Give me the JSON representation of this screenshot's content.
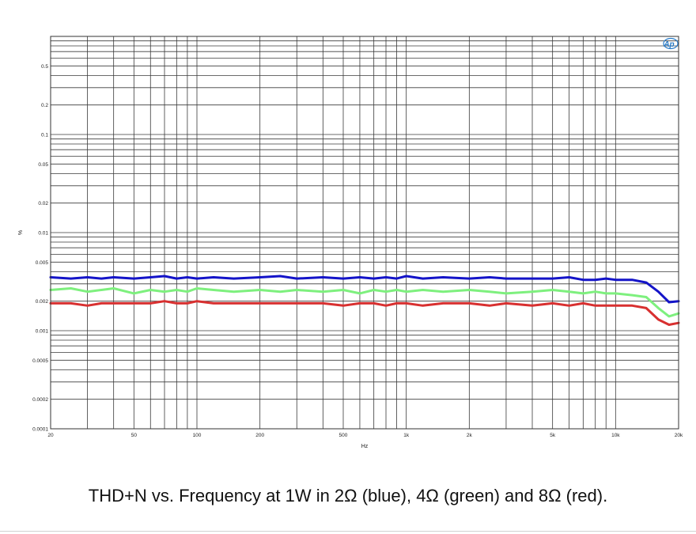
{
  "chart_data": {
    "type": "line",
    "title": "",
    "xlabel": "Hz",
    "ylabel": "%",
    "x_scale": "log",
    "y_scale": "log",
    "xlim": [
      20,
      20000
    ],
    "ylim": [
      0.0001,
      1
    ],
    "x_tick_values": [
      20,
      50,
      100,
      200,
      500,
      1000,
      2000,
      5000,
      10000,
      20000
    ],
    "x_tick_labels": [
      "20",
      "50",
      "100",
      "200",
      "500",
      "1k",
      "2k",
      "5k",
      "10k",
      "20k"
    ],
    "y_tick_values": [
      0.5,
      0.2,
      0.1,
      0.05,
      0.02,
      0.01,
      0.005,
      0.002,
      0.001,
      0.0005,
      0.0002,
      0.0001
    ],
    "y_tick_labels": [
      "0.5",
      "0.2",
      "0.1",
      "0.05",
      "0.02",
      "0.01",
      "0.005",
      "0.002",
      "0.001",
      "0.0005",
      "0.0002",
      "0.0001"
    ],
    "grid": true,
    "logo": "Ap",
    "series": [
      {
        "name": "2Ω",
        "color": "#1414c8",
        "x": [
          20,
          25,
          30,
          35,
          40,
          50,
          60,
          70,
          80,
          90,
          100,
          120,
          150,
          200,
          250,
          300,
          400,
          500,
          600,
          700,
          800,
          900,
          1000,
          1200,
          1500,
          2000,
          2500,
          3000,
          4000,
          5000,
          6000,
          7000,
          8000,
          9000,
          10000,
          12000,
          14000,
          16000,
          18000,
          20000
        ],
        "y": [
          0.0035,
          0.0034,
          0.0035,
          0.0034,
          0.0035,
          0.0034,
          0.0035,
          0.0036,
          0.0034,
          0.0035,
          0.0034,
          0.0035,
          0.0034,
          0.0035,
          0.0036,
          0.0034,
          0.0035,
          0.0034,
          0.0035,
          0.0034,
          0.0035,
          0.0034,
          0.0036,
          0.0034,
          0.0035,
          0.0034,
          0.0035,
          0.0034,
          0.0034,
          0.0034,
          0.0035,
          0.0033,
          0.0033,
          0.0034,
          0.0033,
          0.0033,
          0.0031,
          0.0025,
          0.00195,
          0.002
        ]
      },
      {
        "name": "4Ω",
        "color": "#7ef07e",
        "x": [
          20,
          25,
          30,
          35,
          40,
          50,
          60,
          70,
          80,
          90,
          100,
          120,
          150,
          200,
          250,
          300,
          400,
          500,
          600,
          700,
          800,
          900,
          1000,
          1200,
          1500,
          2000,
          2500,
          3000,
          4000,
          5000,
          6000,
          7000,
          8000,
          9000,
          10000,
          12000,
          14000,
          16000,
          18000,
          20000
        ],
        "y": [
          0.0026,
          0.0027,
          0.0025,
          0.0026,
          0.0027,
          0.0024,
          0.0026,
          0.0025,
          0.0026,
          0.0025,
          0.0027,
          0.0026,
          0.0025,
          0.0026,
          0.0025,
          0.0026,
          0.0025,
          0.0026,
          0.0024,
          0.0026,
          0.0025,
          0.0026,
          0.0025,
          0.0026,
          0.0025,
          0.0026,
          0.0025,
          0.0024,
          0.0025,
          0.0026,
          0.0025,
          0.0024,
          0.0025,
          0.0024,
          0.0024,
          0.0023,
          0.0022,
          0.0017,
          0.0014,
          0.0015
        ]
      },
      {
        "name": "8Ω",
        "color": "#d83030",
        "x": [
          20,
          25,
          30,
          35,
          40,
          50,
          60,
          70,
          80,
          90,
          100,
          120,
          150,
          200,
          250,
          300,
          400,
          500,
          600,
          700,
          800,
          900,
          1000,
          1200,
          1500,
          2000,
          2500,
          3000,
          4000,
          5000,
          6000,
          7000,
          8000,
          9000,
          10000,
          12000,
          14000,
          16000,
          18000,
          20000
        ],
        "y": [
          0.0019,
          0.0019,
          0.0018,
          0.0019,
          0.0019,
          0.0019,
          0.0019,
          0.002,
          0.0019,
          0.0019,
          0.002,
          0.0019,
          0.0019,
          0.0019,
          0.0019,
          0.0019,
          0.0019,
          0.0018,
          0.0019,
          0.0019,
          0.0018,
          0.0019,
          0.0019,
          0.0018,
          0.0019,
          0.0019,
          0.0018,
          0.0019,
          0.0018,
          0.0019,
          0.0018,
          0.0019,
          0.0018,
          0.0018,
          0.0018,
          0.0018,
          0.0017,
          0.0013,
          0.00115,
          0.0012
        ]
      }
    ]
  },
  "caption": "THD+N vs. Frequency at 1W in 2Ω (blue), 4Ω (green) and 8Ω (red)."
}
